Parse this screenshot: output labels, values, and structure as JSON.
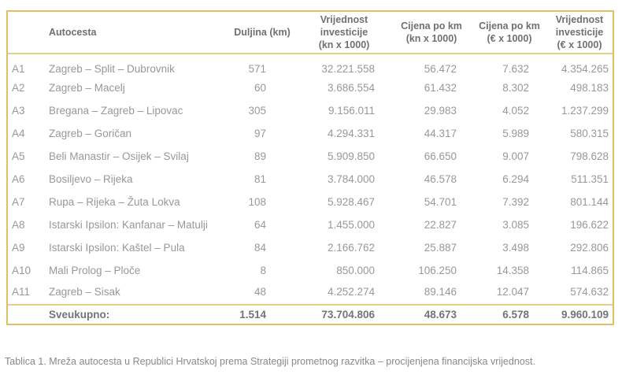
{
  "table": {
    "columns": [
      {
        "key": "code",
        "label": ""
      },
      {
        "key": "name",
        "label": "Autocesta"
      },
      {
        "key": "duljina",
        "label": "Duljina (km)"
      },
      {
        "key": "vkn",
        "label": "Vrijednost\ninvesticije\n(kn x 1000)"
      },
      {
        "key": "ckn",
        "label": "Cijena po km\n(kn x 1000)"
      },
      {
        "key": "ceur",
        "label": "Cijena po km\n(€ x 1000)"
      },
      {
        "key": "veur",
        "label": "Vrijednost\ninvesticije\n(€ x 1000)"
      }
    ],
    "rows": [
      {
        "code": "A1",
        "name": "Zagreb – Split – Dubrovnik",
        "duljina": "571",
        "vkn": "32.221.558",
        "ckn": "56.472",
        "ceur": "7.632",
        "veur": "4.354.265"
      },
      {
        "code": "A2",
        "name": "Zagreb – Macelj",
        "duljina": "60",
        "vkn": "3.686.554",
        "ckn": "61.432",
        "ceur": "8.302",
        "veur": "498.183"
      },
      {
        "code": "A3",
        "name": "Bregana – Zagreb – Lipovac",
        "duljina": "305",
        "vkn": "9.156.011",
        "ckn": "29.983",
        "ceur": "4.052",
        "veur": "1.237.299"
      },
      {
        "code": "A4",
        "name": "Zagreb – Goričan",
        "duljina": "97",
        "vkn": "4.294.331",
        "ckn": "44.317",
        "ceur": "5.989",
        "veur": "580.315"
      },
      {
        "code": "A5",
        "name": "Beli Manastir – Osijek – Svilaj",
        "duljina": "89",
        "vkn": "5.909.850",
        "ckn": "66.650",
        "ceur": "9.007",
        "veur": "798.628"
      },
      {
        "code": "A6",
        "name": "Bosiljevo – Rijeka",
        "duljina": "81",
        "vkn": "3.784.000",
        "ckn": "46.578",
        "ceur": "6.294",
        "veur": "511.351"
      },
      {
        "code": "A7",
        "name": "Rupa – Rijeka – Žuta Lokva",
        "duljina": "108",
        "vkn": "5.928.467",
        "ckn": "54.701",
        "ceur": "7.392",
        "veur": "801.144"
      },
      {
        "code": "A8",
        "name": "Istarski Ipsilon: Kanfanar – Matulji",
        "duljina": "64",
        "vkn": "1.455.000",
        "ckn": "22.827",
        "ceur": "3.085",
        "veur": "196.622"
      },
      {
        "code": "A9",
        "name": "Istarski Ipsilon: Kaštel – Pula",
        "duljina": "84",
        "vkn": "2.166.762",
        "ckn": "25.887",
        "ceur": "3.498",
        "veur": "292.806"
      },
      {
        "code": "A10",
        "name": "Mali Prolog – Ploče",
        "duljina": "8",
        "vkn": "850.000",
        "ckn": "106.250",
        "ceur": "14.358",
        "veur": "114.865"
      },
      {
        "code": "A11",
        "name": "Zagreb – Sisak",
        "duljina": "48",
        "vkn": "4.252.274",
        "ckn": "89.146",
        "ceur": "12.047",
        "veur": "574.632"
      }
    ],
    "total": {
      "code": "",
      "name": "Sveukupno:",
      "duljina": "1.514",
      "vkn": "73.704.806",
      "ckn": "48.673",
      "ceur": "6.578",
      "veur": "9.960.109"
    }
  },
  "caption": "Tablica 1. Mreža autocesta u Republici Hrvatskoj prema Strategiji prometnog razvitka – procijenjena financijska vrijednost.",
  "colors": {
    "border_gold": "#dfc063",
    "inner_line_gold": "#e7ce85",
    "header_text": "#6f7072",
    "body_text": "#96989b",
    "total_text": "#737477",
    "caption_text": "#87898c"
  }
}
